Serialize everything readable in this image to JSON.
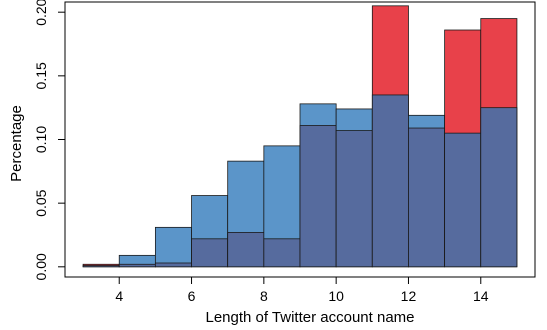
{
  "chart_data": {
    "type": "bar",
    "title": "",
    "xlabel": "Length of Twitter account name",
    "ylabel": "Percentage",
    "xlim": [
      2.5,
      15.5
    ],
    "ylim": [
      -0.008,
      0.208
    ],
    "x_ticks": [
      4,
      6,
      8,
      10,
      12,
      14
    ],
    "y_ticks": [
      0.0,
      0.05,
      0.1,
      0.15,
      0.2
    ],
    "y_tick_labels": [
      "0.00",
      "0.05",
      "0.10",
      "0.15",
      "0.20"
    ],
    "bin_edges": [
      3,
      4,
      5,
      6,
      7,
      8,
      9,
      10,
      11,
      12,
      13,
      14,
      15
    ],
    "series": [
      {
        "color": "#5b95c9",
        "values": [
          0.001,
          0.009,
          0.031,
          0.056,
          0.083,
          0.095,
          0.128,
          0.124,
          0.135,
          0.119,
          0.105,
          0.125
        ]
      },
      {
        "color": "#e8414a",
        "values": [
          0.002,
          0.002,
          0.003,
          0.022,
          0.027,
          0.022,
          0.111,
          0.107,
          0.205,
          0.109,
          0.186,
          0.195
        ]
      }
    ],
    "overlap_color": "#566b9e",
    "grid": false
  }
}
